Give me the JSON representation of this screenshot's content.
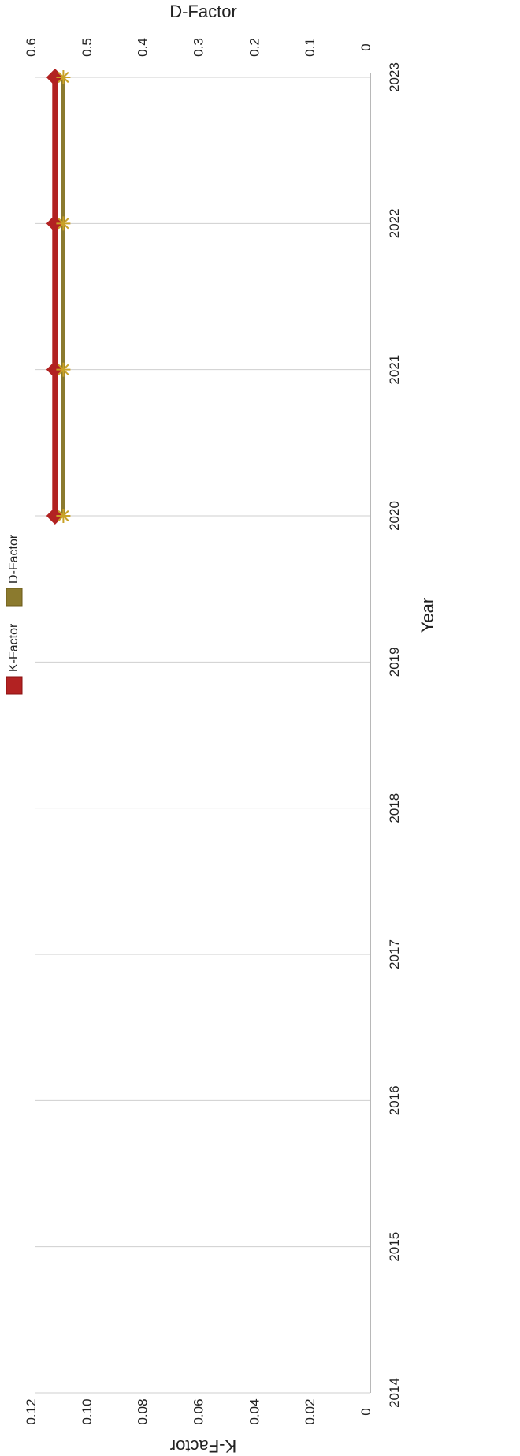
{
  "chart_data": {
    "type": "line",
    "orientation": "rotated-90-clockwise",
    "xlabel": "Year",
    "y_left_label": "K-Factor",
    "y_right_label": "D-Factor",
    "x_ticks": [
      "2014",
      "2015",
      "2016",
      "2017",
      "2018",
      "2019",
      "2020",
      "2021",
      "2022",
      "2023"
    ],
    "x_range": [
      2014,
      2023
    ],
    "y_left_ticks": [
      "0",
      "0.02",
      "0.04",
      "0.06",
      "0.08",
      "0.10",
      "0.12"
    ],
    "y_left_range": [
      0,
      0.12
    ],
    "y_right_ticks": [
      "0",
      "0.1",
      "0.2",
      "0.3",
      "0.4",
      "0.5",
      "0.6"
    ],
    "y_right_range": [
      0,
      0.6
    ],
    "grid": true,
    "legend_position": "top",
    "series": [
      {
        "name": "K-Factor",
        "axis": "left",
        "color": "#b22222",
        "marker": "diamond",
        "x": [
          2020,
          2021,
          2022,
          2023
        ],
        "y": [
          0.113,
          0.113,
          0.113,
          0.113
        ]
      },
      {
        "name": "D-Factor",
        "axis": "right",
        "color": "#8b7a2e",
        "marker": "asterisk",
        "x": [
          2020,
          2021,
          2022,
          2023
        ],
        "y": [
          0.55,
          0.55,
          0.55,
          0.55
        ]
      }
    ]
  }
}
